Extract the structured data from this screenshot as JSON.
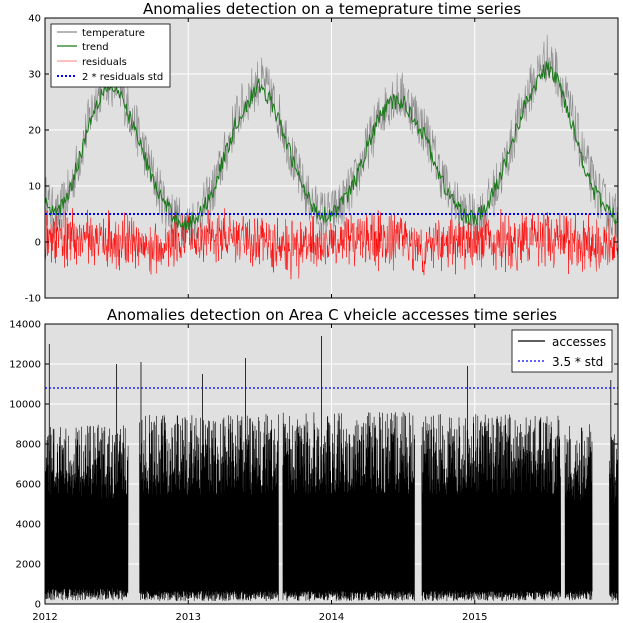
{
  "chart_data": [
    {
      "type": "line",
      "title": "Anomalies detection on a temeprature time series",
      "xlabel": "",
      "ylabel": "",
      "ylim": [
        -10,
        40
      ],
      "yticks": [
        -10,
        0,
        10,
        20,
        30,
        40
      ],
      "xticks": [],
      "xlim": [
        2012.0,
        2016.0
      ],
      "grid": true,
      "background_color": "#e0e0e0",
      "legend": "upper-left",
      "series": [
        {
          "name": "temperature",
          "color": "#8a8a8a",
          "style": "solid",
          "x": [
            2012.0,
            2012.08,
            2012.17,
            2012.25,
            2012.33,
            2012.42,
            2012.5,
            2012.58,
            2012.67,
            2012.75,
            2012.83,
            2012.92,
            2013.0,
            2013.08,
            2013.17,
            2013.25,
            2013.33,
            2013.42,
            2013.5,
            2013.58,
            2013.67,
            2013.75,
            2013.83,
            2013.92,
            2014.0,
            2014.08,
            2014.17,
            2014.25,
            2014.33,
            2014.42,
            2014.5,
            2014.58,
            2014.67,
            2014.75,
            2014.83,
            2014.92,
            2015.0,
            2015.08,
            2015.17,
            2015.25,
            2015.33,
            2015.42,
            2015.5,
            2015.58,
            2015.67,
            2015.75,
            2015.83,
            2015.92,
            2016.0
          ],
          "y": [
            8,
            4,
            9,
            16,
            24,
            29,
            28,
            24,
            18,
            12,
            7,
            4,
            3,
            5,
            9,
            15,
            22,
            26,
            29,
            26,
            20,
            13,
            8,
            5,
            5,
            7,
            11,
            17,
            22,
            26,
            26,
            23,
            19,
            13,
            8,
            5,
            4,
            6,
            11,
            17,
            24,
            29,
            33,
            30,
            23,
            16,
            10,
            6,
            4
          ]
        },
        {
          "name": "trend",
          "color": "#1a7a1a",
          "style": "solid",
          "x": [
            2012.0,
            2012.08,
            2012.17,
            2012.25,
            2012.33,
            2012.42,
            2012.5,
            2012.58,
            2012.67,
            2012.75,
            2012.83,
            2012.92,
            2013.0,
            2013.08,
            2013.17,
            2013.25,
            2013.33,
            2013.42,
            2013.5,
            2013.58,
            2013.67,
            2013.75,
            2013.83,
            2013.92,
            2014.0,
            2014.08,
            2014.17,
            2014.25,
            2014.33,
            2014.42,
            2014.5,
            2014.58,
            2014.67,
            2014.75,
            2014.83,
            2014.92,
            2015.0,
            2015.08,
            2015.17,
            2015.25,
            2015.33,
            2015.42,
            2015.5,
            2015.58,
            2015.67,
            2015.75,
            2015.83,
            2015.92,
            2016.0
          ],
          "y": [
            7,
            5,
            9,
            16,
            23,
            28,
            27,
            23,
            17,
            11,
            7,
            4,
            3,
            5,
            9,
            15,
            21,
            25,
            28,
            25,
            19,
            13,
            8,
            5,
            5,
            7,
            11,
            17,
            22,
            25,
            25,
            22,
            18,
            12,
            8,
            5,
            4,
            6,
            11,
            17,
            23,
            28,
            31,
            29,
            22,
            15,
            9,
            6,
            4
          ]
        },
        {
          "name": "residuals",
          "color": "#ff0000",
          "style": "solid",
          "x": [
            2012.0,
            2012.25,
            2012.5,
            2012.75,
            2013.0,
            2013.25,
            2013.5,
            2013.75,
            2014.0,
            2014.25,
            2014.5,
            2014.75,
            2015.0,
            2015.25,
            2015.5,
            2015.75,
            2016.0
          ],
          "y": [
            0,
            1,
            0,
            -1,
            0,
            1,
            0,
            -1,
            0,
            1,
            0,
            -1,
            0,
            0,
            1,
            -1,
            0
          ],
          "noise_amplitude": 4
        },
        {
          "name": "2 * residuals std",
          "color": "#0000ff",
          "style": "dotted",
          "x": [
            2012.0,
            2016.0
          ],
          "y": [
            5,
            5
          ]
        }
      ]
    },
    {
      "type": "line",
      "title": "Anomalies detection on Area C vheicle accesses time series",
      "xlabel": "",
      "ylabel": "",
      "ylim": [
        0,
        14000
      ],
      "yticks": [
        0,
        2000,
        4000,
        6000,
        8000,
        10000,
        12000,
        14000
      ],
      "xlim": [
        2012.0,
        2016.0
      ],
      "xticks": [
        2012,
        2013,
        2014,
        2015
      ],
      "grid": true,
      "background_color": "#e0e0e0",
      "legend": "upper-right",
      "series": [
        {
          "name": "accesses",
          "color": "#000000",
          "style": "solid",
          "segments": [
            {
              "start": 2012.0,
              "end": 2012.58,
              "high": 9000,
              "low": 600
            },
            {
              "start": 2012.66,
              "end": 2013.63,
              "high": 9500,
              "low": 500
            },
            {
              "start": 2013.66,
              "end": 2014.58,
              "high": 9600,
              "low": 500
            },
            {
              "start": 2014.63,
              "end": 2015.6,
              "high": 9500,
              "low": 500
            },
            {
              "start": 2015.63,
              "end": 2015.82,
              "high": 9000,
              "low": 500
            },
            {
              "start": 2015.94,
              "end": 2016.0,
              "high": 8500,
              "low": 500
            }
          ],
          "peaks": [
            {
              "x": 2012.03,
              "y": 13000
            },
            {
              "x": 2012.5,
              "y": 12000
            },
            {
              "x": 2012.67,
              "y": 12100
            },
            {
              "x": 2013.1,
              "y": 11500
            },
            {
              "x": 2013.4,
              "y": 12300
            },
            {
              "x": 2013.93,
              "y": 13400
            },
            {
              "x": 2014.95,
              "y": 11900
            },
            {
              "x": 2015.95,
              "y": 11200
            }
          ]
        },
        {
          "name": "3.5 * std",
          "color": "#0000ff",
          "style": "dotted",
          "x": [
            2012.0,
            2016.0
          ],
          "y": [
            10800,
            10800
          ]
        }
      ]
    }
  ]
}
